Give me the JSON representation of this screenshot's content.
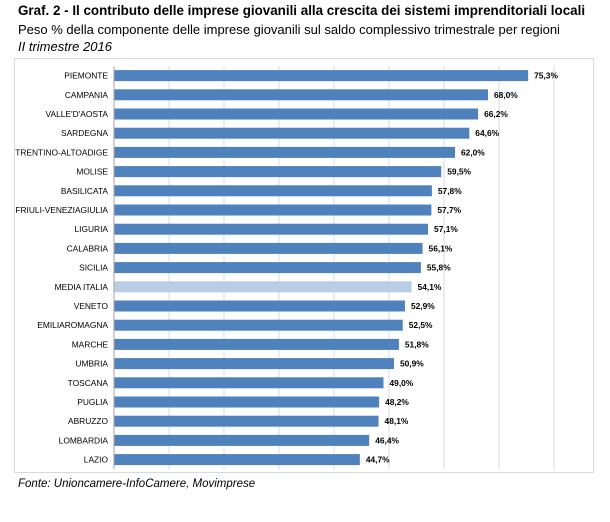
{
  "header": {
    "title": "Graf. 2 - Il contributo delle imprese giovanili alla crescita dei sistemi imprenditoriali locali",
    "subtitle": "Peso % della componente delle imprese giovanili sul saldo complessivo trimestrale per regioni",
    "period": "II trimestre 2016"
  },
  "footer": {
    "source": "Fonte: Unioncamere-InfoCamere, Movimprese"
  },
  "colors": {
    "bar": "#4f81bd",
    "bar_highlight": "#b9cde5",
    "grid": "#d9d9d9",
    "axis": "#a6a6a6"
  },
  "chart_data": {
    "type": "bar",
    "orientation": "horizontal",
    "title": "Graf. 2 - Il contributo delle imprese giovanili alla crescita dei sistemi imprenditoriali locali",
    "xlabel": "",
    "ylabel": "",
    "xlim": [
      0,
      80
    ],
    "grid": true,
    "highlight": "MEDIA ITALIA",
    "categories": [
      "PIEMONTE",
      "CAMPANIA",
      "VALLE'D'AOSTA",
      "SARDEGNA",
      "TRENTINO-ALTOADIGE",
      "MOLISE",
      "BASILICATA",
      "FRIULI-VENEZIAGIULIA",
      "LIGURIA",
      "CALABRIA",
      "SICILIA",
      "MEDIA ITALIA",
      "VENETO",
      "EMILIAROMAGNA",
      "MARCHE",
      "UMBRIA",
      "TOSCANA",
      "PUGLIA",
      "ABRUZZO",
      "LOMBARDIA",
      "LAZIO"
    ],
    "values": [
      75.3,
      68.0,
      66.2,
      64.6,
      62.0,
      59.5,
      57.8,
      57.7,
      57.1,
      56.1,
      55.8,
      54.1,
      52.9,
      52.5,
      51.8,
      50.9,
      49.0,
      48.2,
      48.1,
      46.4,
      44.7
    ],
    "value_labels": [
      "75,3%",
      "68,0%",
      "66,2%",
      "64,6%",
      "62,0%",
      "59,5%",
      "57,8%",
      "57,7%",
      "57,1%",
      "56,1%",
      "55,8%",
      "54,1%",
      "52,9%",
      "52,5%",
      "51,8%",
      "50,9%",
      "49,0%",
      "48,2%",
      "48,1%",
      "46,4%",
      "44,7%"
    ]
  }
}
